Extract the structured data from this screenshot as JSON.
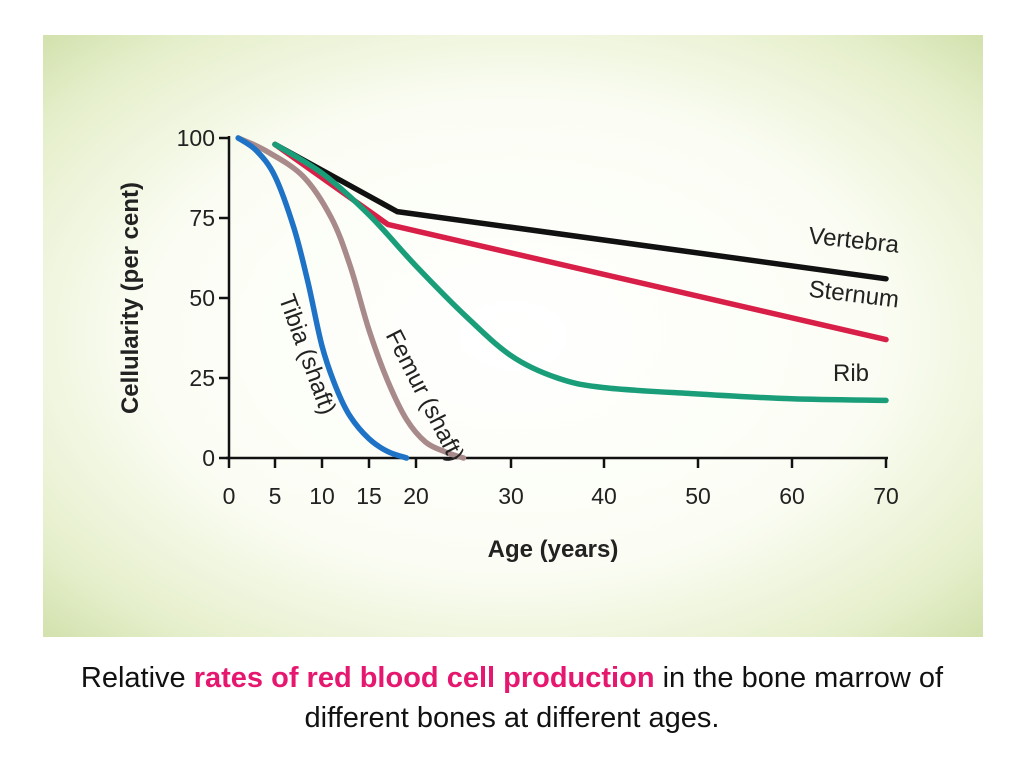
{
  "chart_data": {
    "type": "line",
    "xlabel": "Age (years)",
    "ylabel": "Cellularity (per cent)",
    "xlim": [
      0,
      70
    ],
    "ylim": [
      0,
      100
    ],
    "x_ticks": [
      0,
      5,
      10,
      15,
      20,
      30,
      40,
      50,
      60,
      70
    ],
    "y_ticks": [
      0,
      25,
      50,
      75,
      100
    ],
    "grid": false,
    "legend": "inline labels",
    "series": [
      {
        "name": "Vertebra",
        "color": "#111111",
        "points": [
          [
            5,
            98
          ],
          [
            18,
            77
          ],
          [
            70,
            56
          ]
        ]
      },
      {
        "name": "Sternum",
        "color": "#d81f47",
        "points": [
          [
            5,
            98
          ],
          [
            17,
            73
          ],
          [
            70,
            37
          ]
        ]
      },
      {
        "name": "Rib",
        "color": "#1a9e7a",
        "points": [
          [
            5,
            98
          ],
          [
            10,
            89
          ],
          [
            15,
            76
          ],
          [
            20,
            60
          ],
          [
            25,
            45
          ],
          [
            30,
            32
          ],
          [
            35,
            25
          ],
          [
            40,
            22
          ],
          [
            50,
            20
          ],
          [
            60,
            18.5
          ],
          [
            70,
            18
          ]
        ]
      },
      {
        "name": "Femur (shaft)",
        "color": "#a88a8a",
        "points": [
          [
            1,
            100
          ],
          [
            4,
            96
          ],
          [
            8,
            88
          ],
          [
            11,
            75
          ],
          [
            13,
            60
          ],
          [
            15,
            40
          ],
          [
            17,
            24
          ],
          [
            19,
            12
          ],
          [
            21,
            5
          ],
          [
            23,
            2
          ],
          [
            25,
            0
          ]
        ]
      },
      {
        "name": "Tibia (shaft)",
        "color": "#1f73c6",
        "points": [
          [
            1,
            100
          ],
          [
            3,
            96
          ],
          [
            5,
            88
          ],
          [
            7,
            72
          ],
          [
            8.5,
            55
          ],
          [
            10,
            35
          ],
          [
            11.5,
            22
          ],
          [
            13,
            13
          ],
          [
            15,
            6
          ],
          [
            17,
            2
          ],
          [
            19,
            0
          ]
        ]
      }
    ]
  },
  "caption": {
    "prefix": "Relative ",
    "highlight": "rates of red blood cell production",
    "suffix": " in the bone marrow of different bones at different ages."
  }
}
